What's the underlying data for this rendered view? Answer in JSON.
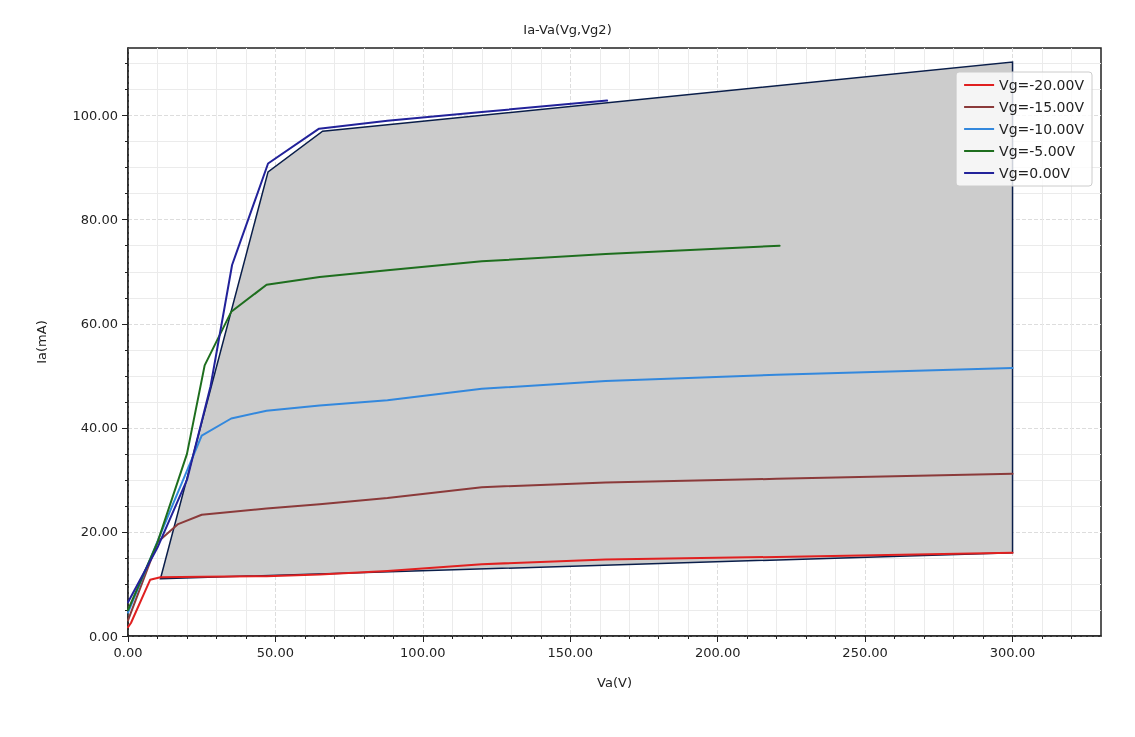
{
  "chart_data": {
    "type": "line",
    "title": "Ia-Va(Vg,Vg2)",
    "xlabel": "Va(V)",
    "ylabel": "Ia(mA)",
    "xlim": [
      0,
      330
    ],
    "ylim": [
      0,
      113
    ],
    "xticks": [
      {
        "value": 0,
        "label": "0.00"
      },
      {
        "value": 50,
        "label": "50.00"
      },
      {
        "value": 100,
        "label": "100.00"
      },
      {
        "value": 150,
        "label": "150.00"
      },
      {
        "value": 200,
        "label": "200.00"
      },
      {
        "value": 250,
        "label": "250.00"
      },
      {
        "value": 300,
        "label": "300.00"
      }
    ],
    "yticks": [
      {
        "value": 0,
        "label": "0.00"
      },
      {
        "value": 20,
        "label": "20.00"
      },
      {
        "value": 40,
        "label": "40.00"
      },
      {
        "value": 60,
        "label": "60.00"
      },
      {
        "value": 80,
        "label": "80.00"
      },
      {
        "value": 100,
        "label": "100.00"
      }
    ],
    "grid": true,
    "legend": "top right",
    "marker": "none",
    "line_style": "solid",
    "series": [
      {
        "type": "area",
        "color": "#cccccc",
        "x": [
          11,
          300,
          300,
          66,
          47.5,
          11
        ],
        "values": [
          11,
          16,
          110.3,
          97,
          89.2,
          11
        ]
      },
      {
        "name": "Vg=-20.00V",
        "color": "#e02020",
        "x": [
          0,
          1,
          7.5,
          11,
          25,
          47,
          65,
          88,
          120,
          162,
          220,
          300
        ],
        "values": [
          1.7,
          2.5,
          10.8,
          11.3,
          11.4,
          11.5,
          11.8,
          12.5,
          13.8,
          14.7,
          15.2,
          16
        ]
      },
      {
        "name": "Vg=-15.00V",
        "color": "#8b3a3a",
        "x": [
          0,
          10,
          17,
          25,
          47,
          65,
          88,
          120,
          162,
          220,
          300
        ],
        "values": [
          3,
          18,
          21.5,
          23.3,
          24.5,
          25.3,
          26.5,
          28.6,
          29.5,
          30.2,
          31.2
        ]
      },
      {
        "name": "Vg=-10.00V",
        "color": "#3388dd",
        "x": [
          0,
          15,
          25,
          35,
          47,
          65,
          88,
          120,
          162,
          220,
          300
        ],
        "values": [
          4.5,
          25,
          38.5,
          41.8,
          43.3,
          44.3,
          45.3,
          47.5,
          49,
          50.2,
          51.5
        ]
      },
      {
        "name": "Vg=-5.00V",
        "color": "#1e6e1e",
        "x": [
          0,
          10,
          20,
          26,
          35,
          47,
          65,
          88,
          120,
          162,
          221
        ],
        "values": [
          5,
          18,
          35,
          52,
          62.3,
          67.5,
          69,
          70.3,
          72,
          73.4,
          75
        ]
      },
      {
        "name": "Vg=0.00V",
        "color": "#22229a",
        "x": [
          0,
          10,
          20,
          28,
          35.3,
          47.5,
          64.8,
          88,
          120,
          162.5
        ],
        "values": [
          6.5,
          17,
          30,
          48,
          71.3,
          90.8,
          97.5,
          99,
          100.7,
          102.9
        ]
      }
    ]
  }
}
